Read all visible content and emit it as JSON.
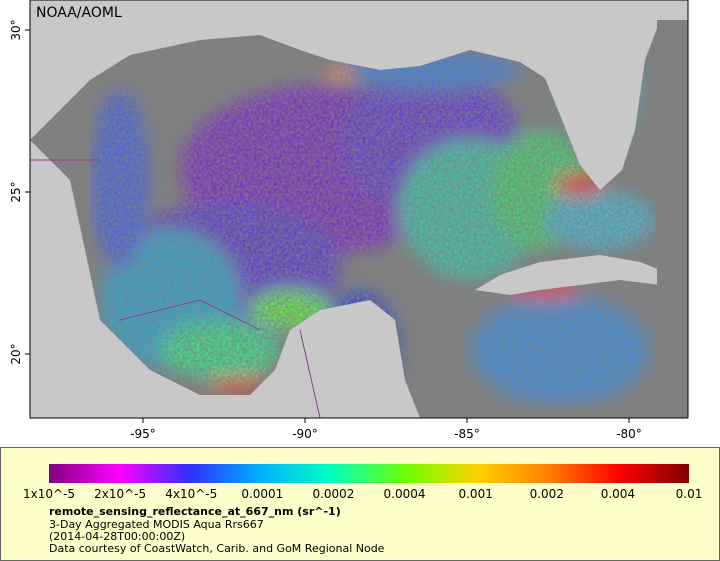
{
  "map": {
    "credit": "NOAA/AOML",
    "lon_ticks": [
      {
        "value": -95,
        "label": "-95°"
      },
      {
        "value": -90,
        "label": "-90°"
      },
      {
        "value": -85,
        "label": "-85°"
      },
      {
        "value": -80,
        "label": "-80°"
      }
    ],
    "lat_ticks": [
      {
        "value": 20,
        "label": "20°"
      },
      {
        "value": 25,
        "label": "25°"
      },
      {
        "value": 30,
        "label": "30°"
      }
    ]
  },
  "legend": {
    "tick_labels": [
      "1x10^-5",
      "2x10^-5",
      "4x10^-5",
      "0.0001",
      "0.0002",
      "0.0004",
      "0.001",
      "0.002",
      "0.004",
      "0.01"
    ],
    "variable": "remote_sensing_reflectance_at_667_nm (sr^-1)",
    "dataset": "3-Day Aggregated MODIS Aqua Rrs667",
    "time": "(2014-04-28T00:00:00Z)",
    "courtesy": "Data courtesy of CoastWatch, Carib. and GoM Regional Node"
  }
}
